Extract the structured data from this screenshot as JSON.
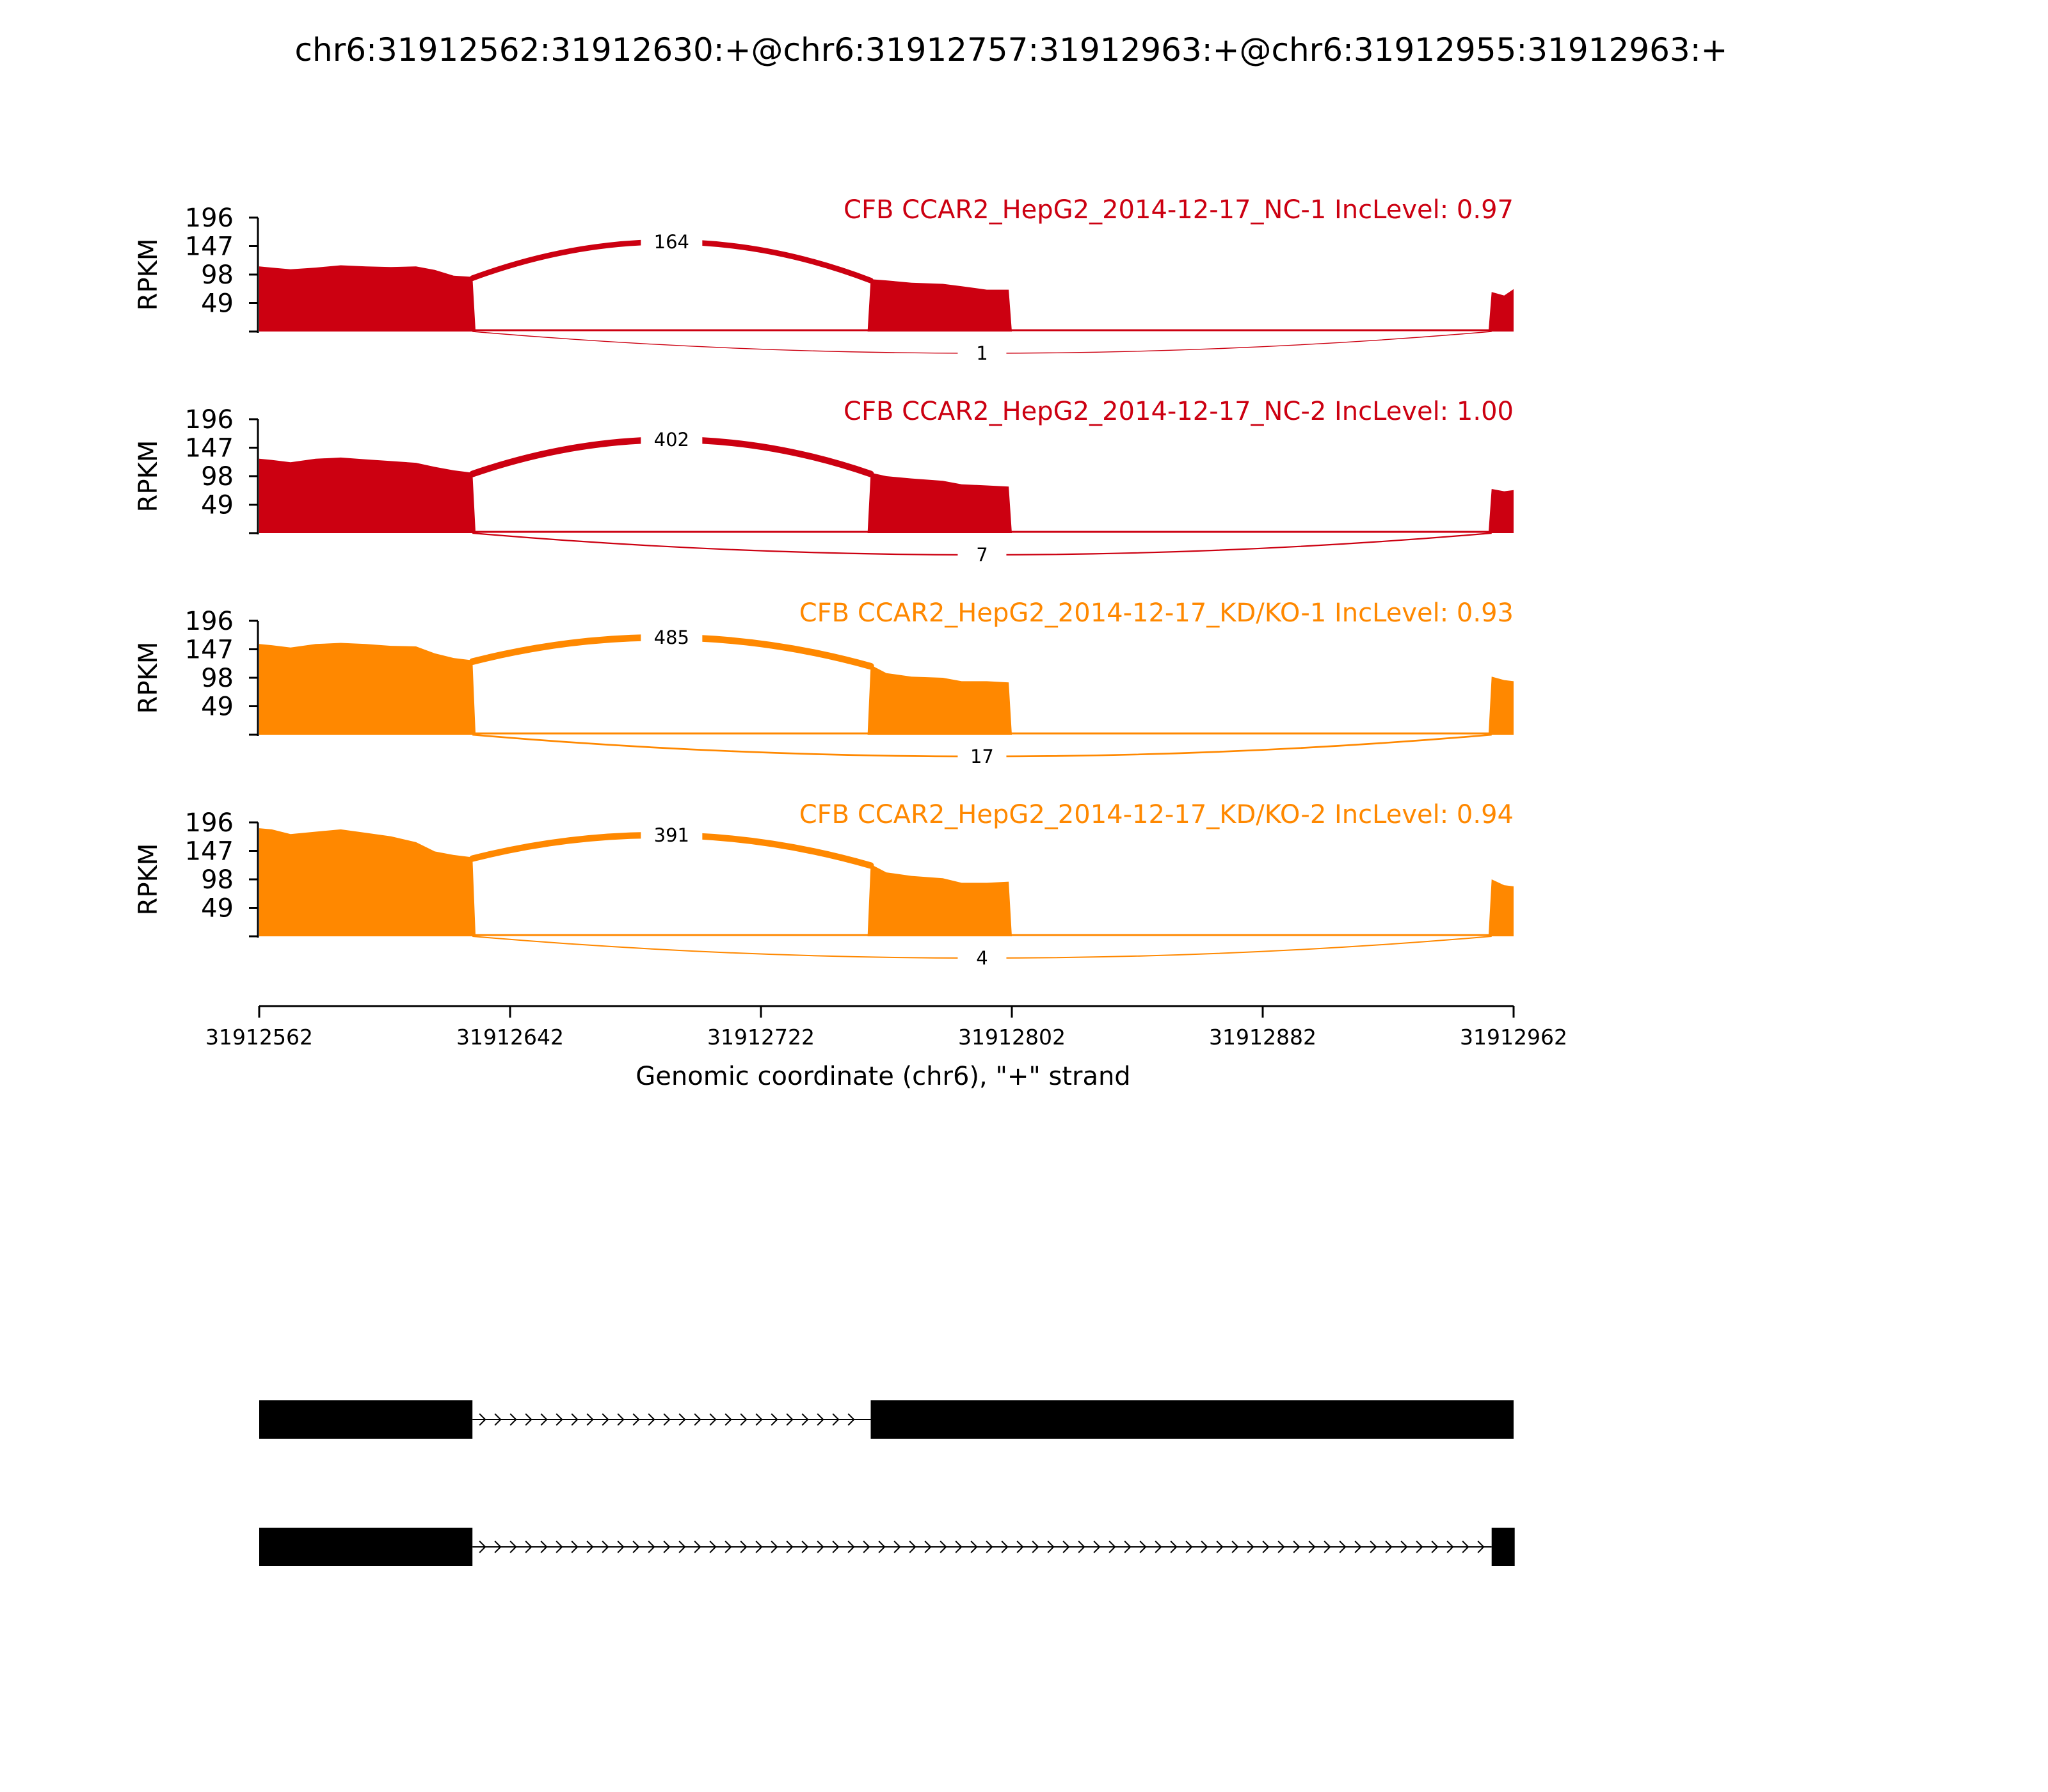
{
  "title": "chr6:31912562:31912630:+@chr6:31912757:31912963:+@chr6:31912955:31912963:+",
  "chart_data": {
    "type": "area",
    "subtype": "sashimi",
    "xlabel": "Genomic coordinate (chr6), \"+\" strand",
    "xlim": [
      31912562,
      31912962
    ],
    "xticks": [
      "31912562",
      "31912642",
      "31912722",
      "31912802",
      "31912882",
      "31912962"
    ],
    "ylabel": "RPKM",
    "yticks": [
      "196",
      "147",
      "98",
      "49"
    ],
    "ylim": [
      0,
      196
    ],
    "colors": {
      "NC": "#cc0011",
      "KD": "#ff8800",
      "gene": "#000000"
    },
    "samples": [
      {
        "name": "CFB CCAR2_HepG2_2014-12-17_NC-1 IncLevel: 0.97",
        "color": "#cc0011",
        "coverage": [
          [
            31912562,
            112
          ],
          [
            31912566,
            110
          ],
          [
            31912572,
            107
          ],
          [
            31912580,
            110
          ],
          [
            31912588,
            114
          ],
          [
            31912596,
            112
          ],
          [
            31912604,
            111
          ],
          [
            31912612,
            112
          ],
          [
            31912618,
            106
          ],
          [
            31912624,
            96
          ],
          [
            31912630,
            94
          ],
          [
            31912631,
            0
          ],
          [
            31912756,
            0
          ],
          [
            31912757,
            90
          ],
          [
            31912762,
            88
          ],
          [
            31912770,
            84
          ],
          [
            31912780,
            82
          ],
          [
            31912786,
            78
          ],
          [
            31912794,
            72
          ],
          [
            31912801,
            72
          ],
          [
            31912802,
            0
          ],
          [
            31912954,
            0
          ],
          [
            31912955,
            68
          ],
          [
            31912959,
            62
          ],
          [
            31912962,
            73
          ]
        ],
        "inclusion_count": "164",
        "skipping_count": "1"
      },
      {
        "name": "CFB CCAR2_HepG2_2014-12-17_NC-2 IncLevel: 1.00",
        "color": "#cc0011",
        "coverage": [
          [
            31912562,
            128
          ],
          [
            31912566,
            126
          ],
          [
            31912572,
            122
          ],
          [
            31912580,
            128
          ],
          [
            31912588,
            130
          ],
          [
            31912596,
            127
          ],
          [
            31912604,
            124
          ],
          [
            31912612,
            121
          ],
          [
            31912618,
            114
          ],
          [
            31912624,
            108
          ],
          [
            31912630,
            104
          ],
          [
            31912631,
            0
          ],
          [
            31912756,
            0
          ],
          [
            31912757,
            104
          ],
          [
            31912762,
            98
          ],
          [
            31912770,
            94
          ],
          [
            31912780,
            90
          ],
          [
            31912786,
            84
          ],
          [
            31912794,
            82
          ],
          [
            31912801,
            80
          ],
          [
            31912802,
            0
          ],
          [
            31912954,
            0
          ],
          [
            31912955,
            76
          ],
          [
            31912959,
            72
          ],
          [
            31912962,
            74
          ]
        ],
        "inclusion_count": "402",
        "skipping_count": "7"
      },
      {
        "name": "CFB CCAR2_HepG2_2014-12-17_KD/KO-1 IncLevel: 0.93",
        "color": "#ff8800",
        "coverage": [
          [
            31912562,
            156
          ],
          [
            31912566,
            154
          ],
          [
            31912572,
            150
          ],
          [
            31912580,
            156
          ],
          [
            31912588,
            158
          ],
          [
            31912596,
            156
          ],
          [
            31912604,
            153
          ],
          [
            31912612,
            152
          ],
          [
            31912618,
            140
          ],
          [
            31912624,
            132
          ],
          [
            31912630,
            128
          ],
          [
            31912631,
            0
          ],
          [
            31912756,
            0
          ],
          [
            31912757,
            120
          ],
          [
            31912762,
            106
          ],
          [
            31912770,
            100
          ],
          [
            31912780,
            98
          ],
          [
            31912786,
            92
          ],
          [
            31912794,
            92
          ],
          [
            31912801,
            90
          ],
          [
            31912802,
            0
          ],
          [
            31912954,
            0
          ],
          [
            31912955,
            100
          ],
          [
            31912959,
            94
          ],
          [
            31912962,
            92
          ]
        ],
        "inclusion_count": "485",
        "skipping_count": "17"
      },
      {
        "name": "CFB CCAR2_HepG2_2014-12-17_KD/KO-2 IncLevel: 0.94",
        "color": "#ff8800",
        "coverage": [
          [
            31912562,
            186
          ],
          [
            31912566,
            184
          ],
          [
            31912572,
            176
          ],
          [
            31912580,
            180
          ],
          [
            31912588,
            184
          ],
          [
            31912596,
            178
          ],
          [
            31912604,
            172
          ],
          [
            31912612,
            162
          ],
          [
            31912618,
            146
          ],
          [
            31912624,
            140
          ],
          [
            31912630,
            136
          ],
          [
            31912631,
            0
          ],
          [
            31912756,
            0
          ],
          [
            31912757,
            124
          ],
          [
            31912762,
            110
          ],
          [
            31912770,
            104
          ],
          [
            31912780,
            100
          ],
          [
            31912786,
            92
          ],
          [
            31912794,
            92
          ],
          [
            31912801,
            94
          ],
          [
            31912802,
            0
          ],
          [
            31912954,
            0
          ],
          [
            31912955,
            98
          ],
          [
            31912959,
            88
          ],
          [
            31912962,
            86
          ]
        ],
        "inclusion_count": "391",
        "skipping_count": "4"
      }
    ],
    "junctions": {
      "inclusion": {
        "start": 31912630,
        "end": 31912757
      },
      "skipping": {
        "start": 31912630,
        "end": 31912955
      }
    },
    "gene_models": [
      {
        "exons": [
          [
            31912562,
            31912630
          ],
          [
            31912757,
            31912962
          ]
        ],
        "strand": "+"
      },
      {
        "exons": [
          [
            31912562,
            31912630
          ],
          [
            31912955,
            31912962
          ]
        ],
        "strand": "+"
      }
    ]
  }
}
